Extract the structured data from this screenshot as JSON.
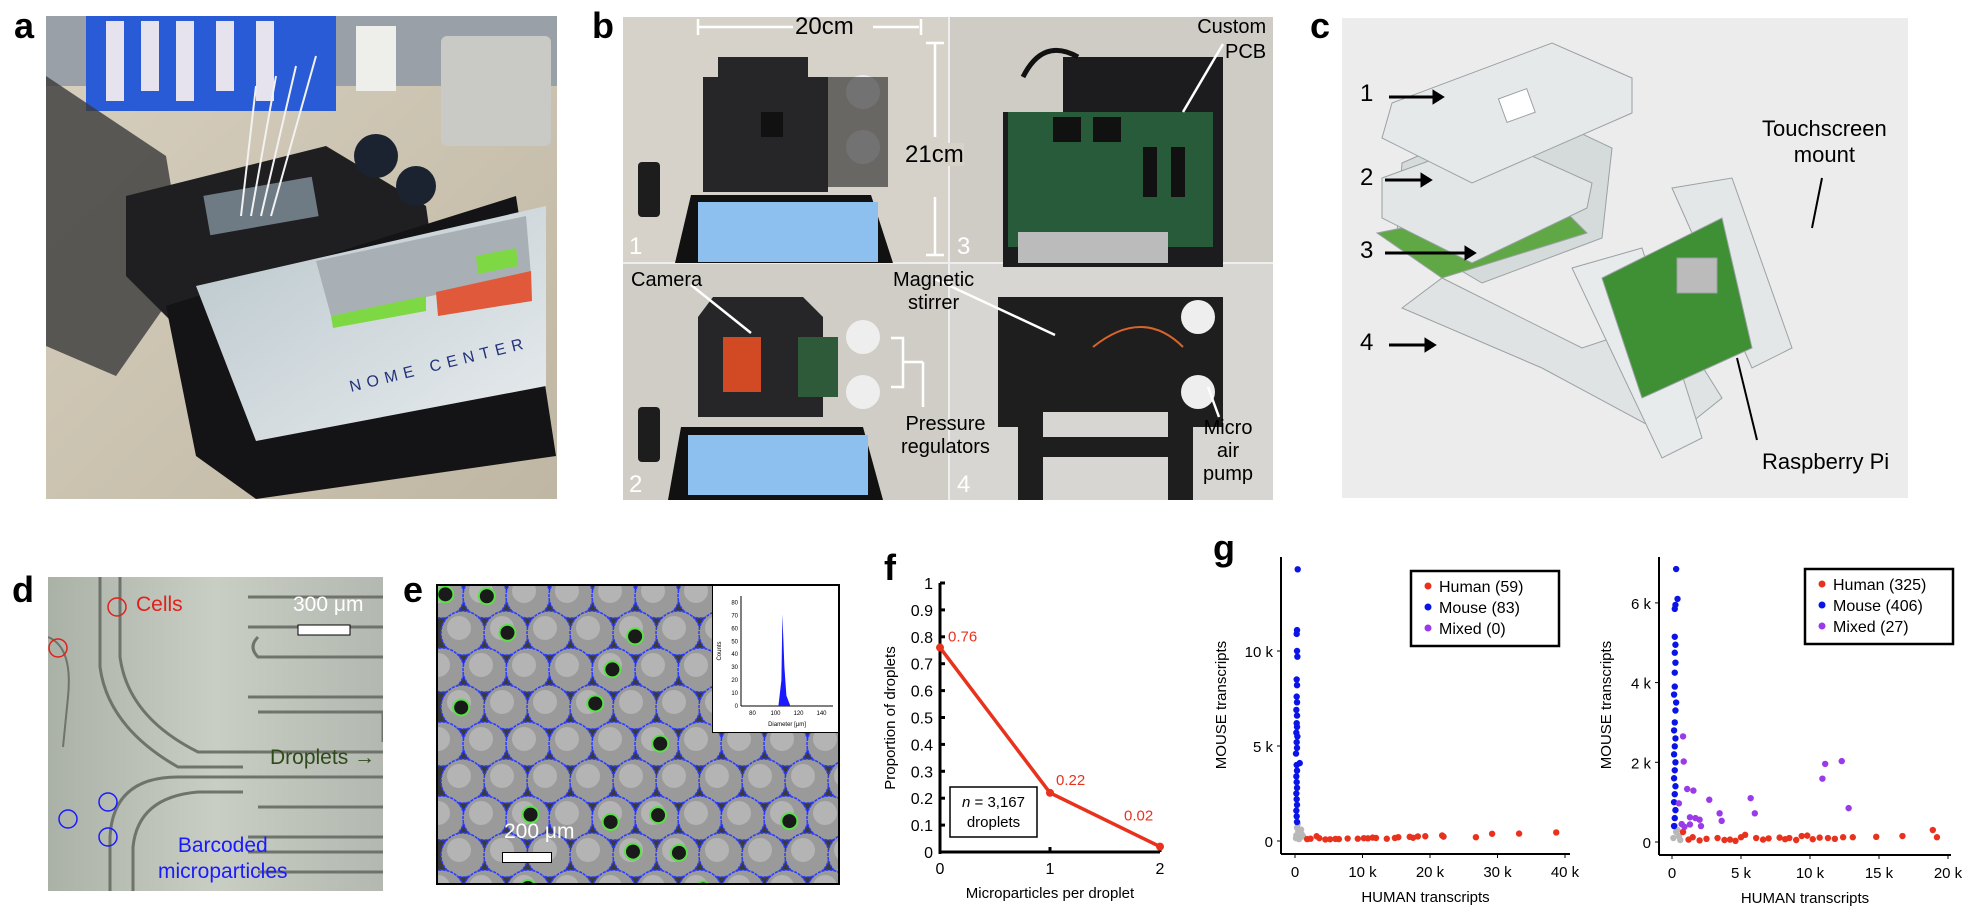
{
  "panels": {
    "a": {
      "label": "a",
      "screen_brand": "NOME CENTER"
    },
    "b": {
      "label": "b",
      "width_dim": "20cm",
      "height_dim": "21cm",
      "custom_pcb": [
        "Custom",
        "PCB"
      ],
      "camera": "Camera",
      "magnetic_stirrer": [
        "Magnetic",
        "stirrer"
      ],
      "pressure_regulators": [
        "Pressure",
        "regulators"
      ],
      "micro_air_pump": [
        "Micro",
        "air",
        "pump"
      ],
      "quadrants": [
        "1",
        "2",
        "3",
        "4"
      ]
    },
    "c": {
      "label": "c",
      "layers": [
        "1",
        "2",
        "3",
        "4"
      ],
      "touchscreen_mount": [
        "Touchscreen",
        "mount"
      ],
      "raspberry_pi": "Raspberry Pi"
    },
    "d": {
      "label": "d",
      "cells": "Cells",
      "scale": "300 μm",
      "droplets": "Droplets →",
      "barcoded": [
        "Barcoded",
        "microparticles"
      ],
      "colors": {
        "cells": "#e0201a",
        "particles": "#1a1aff",
        "droplets": "#2f4a1a"
      }
    },
    "e": {
      "label": "e",
      "scale": "200 μm",
      "inset": {
        "xlabel": "Diameter [μm]",
        "ylabel": "Counts",
        "xticks": [
          "80",
          "100",
          "120",
          "140"
        ],
        "yticks": [
          "0",
          "10",
          "20",
          "30",
          "40",
          "50",
          "60",
          "70",
          "80"
        ],
        "xlim": [
          70,
          150
        ],
        "ylim": [
          0,
          85
        ],
        "peak_x": 106,
        "peak_y": 71
      }
    },
    "f": {
      "label": "f"
    },
    "g": {
      "label": "g"
    }
  },
  "chart_data": [
    {
      "id": "f",
      "type": "line",
      "x": [
        0,
        1,
        2
      ],
      "values": [
        0.76,
        0.22,
        0.02
      ],
      "data_labels": [
        "0.76",
        "0.22",
        "0.02"
      ],
      "xlabel": "Microparticles per droplet",
      "ylabel": "Proportion of droplets",
      "xticks": [
        "0",
        "1",
        "2"
      ],
      "yticks": [
        "0",
        "0.1",
        "0.2",
        "0.3",
        "0.4",
        "0.5",
        "0.6",
        "0.7",
        "0.8",
        "0.9",
        "1"
      ],
      "xlim": [
        0,
        2
      ],
      "ylim": [
        0,
        1
      ],
      "annotation": {
        "n": "n",
        "rest": " = 3,167",
        "line2": "droplets"
      },
      "color": "#e8321e"
    },
    {
      "id": "g-left",
      "type": "scatter",
      "xlabel": "HUMAN transcripts",
      "ylabel": "MOUSE transcripts",
      "xticks": [
        "0",
        "10 k",
        "20 k",
        "30 k",
        "40 k"
      ],
      "xtick_values": [
        0,
        10000,
        20000,
        30000,
        40000
      ],
      "yticks": [
        "0",
        "5 k",
        "10 k"
      ],
      "ytick_values": [
        0,
        5000,
        10000
      ],
      "legend": "top-right",
      "series": [
        {
          "name": "Human (59)",
          "color": "#e8321e",
          "points": [
            [
              1800,
              100
            ],
            [
              2300,
              120
            ],
            [
              3200,
              250
            ],
            [
              3600,
              150
            ],
            [
              4500,
              80
            ],
            [
              5200,
              90
            ],
            [
              6000,
              110
            ],
            [
              6500,
              100
            ],
            [
              7800,
              130
            ],
            [
              9300,
              120
            ],
            [
              10200,
              150
            ],
            [
              10800,
              140
            ],
            [
              11500,
              180
            ],
            [
              12000,
              160
            ],
            [
              13600,
              120
            ],
            [
              14800,
              160
            ],
            [
              15300,
              200
            ],
            [
              17000,
              220
            ],
            [
              17500,
              170
            ],
            [
              18200,
              240
            ],
            [
              19300,
              250
            ],
            [
              21800,
              290
            ],
            [
              22000,
              230
            ],
            [
              26800,
              200
            ],
            [
              29200,
              380
            ],
            [
              33200,
              390
            ],
            [
              38700,
              450
            ]
          ]
        },
        {
          "name": "Mouse (83)",
          "color": "#0a14e6",
          "points": [
            [
              400,
              14300
            ],
            [
              300,
              11100
            ],
            [
              250,
              10900
            ],
            [
              300,
              10000
            ],
            [
              350,
              9700
            ],
            [
              250,
              8500
            ],
            [
              300,
              8200
            ],
            [
              250,
              7600
            ],
            [
              300,
              7300
            ],
            [
              200,
              6900
            ],
            [
              300,
              6600
            ],
            [
              250,
              6200
            ],
            [
              300,
              6000
            ],
            [
              200,
              5700
            ],
            [
              350,
              5500
            ],
            [
              250,
              5200
            ],
            [
              300,
              4900
            ],
            [
              150,
              4600
            ],
            [
              700,
              4100
            ],
            [
              250,
              4000
            ],
            [
              300,
              3700
            ],
            [
              200,
              3400
            ],
            [
              250,
              3100
            ],
            [
              300,
              2800
            ],
            [
              200,
              2500
            ],
            [
              250,
              2200
            ],
            [
              300,
              1900
            ],
            [
              200,
              1600
            ],
            [
              250,
              1300
            ],
            [
              300,
              1000
            ]
          ]
        },
        {
          "name": "Mixed (0)",
          "color": "#9a3ae8",
          "points": []
        },
        {
          "color": "#b8b8b8",
          "points": [
            [
              200,
              300
            ],
            [
              500,
              500
            ],
            [
              800,
              200
            ],
            [
              300,
              700
            ],
            [
              600,
              100
            ],
            [
              1000,
              350
            ],
            [
              400,
              900
            ],
            [
              900,
              600
            ],
            [
              150,
              150
            ],
            [
              1200,
              250
            ]
          ]
        }
      ]
    },
    {
      "id": "g-right",
      "type": "scatter",
      "xlabel": "HUMAN transcripts",
      "ylabel": "MOUSE transcripts",
      "xticks": [
        "0",
        "5 k",
        "10 k",
        "15 k",
        "20 k"
      ],
      "xtick_values": [
        0,
        5000,
        10000,
        15000,
        20000
      ],
      "yticks": [
        "0",
        "2 k",
        "4 k",
        "6 k"
      ],
      "ytick_values": [
        0,
        2000,
        4000,
        6000
      ],
      "legend": "top-right",
      "series": [
        {
          "name": "Human (325)",
          "color": "#e8321e",
          "points": [
            [
              800,
              250
            ],
            [
              1500,
              120
            ],
            [
              2500,
              80
            ],
            [
              3300,
              100
            ],
            [
              4200,
              60
            ],
            [
              5000,
              120
            ],
            [
              5300,
              180
            ],
            [
              6100,
              100
            ],
            [
              7000,
              90
            ],
            [
              7800,
              110
            ],
            [
              8500,
              100
            ],
            [
              9400,
              150
            ],
            [
              9800,
              160
            ],
            [
              10700,
              110
            ],
            [
              11300,
              100
            ],
            [
              12400,
              120
            ],
            [
              13100,
              120
            ],
            [
              14800,
              130
            ],
            [
              16700,
              150
            ],
            [
              18900,
              300
            ],
            [
              19200,
              120
            ],
            [
              1200,
              60
            ],
            [
              2000,
              40
            ],
            [
              3800,
              50
            ],
            [
              4600,
              30
            ],
            [
              6600,
              60
            ],
            [
              8200,
              70
            ],
            [
              9000,
              50
            ],
            [
              10200,
              70
            ],
            [
              11800,
              80
            ]
          ]
        },
        {
          "name": "Mouse (406)",
          "color": "#0a14e6",
          "points": [
            [
              300,
              6850
            ],
            [
              400,
              6100
            ],
            [
              250,
              5950
            ],
            [
              200,
              5850
            ],
            [
              200,
              5150
            ],
            [
              250,
              4950
            ],
            [
              200,
              4750
            ],
            [
              250,
              4500
            ],
            [
              200,
              4250
            ],
            [
              200,
              3900
            ],
            [
              150,
              3700
            ],
            [
              300,
              3500
            ],
            [
              250,
              3300
            ],
            [
              200,
              3000
            ],
            [
              150,
              2800
            ],
            [
              250,
              2600
            ],
            [
              200,
              2400
            ],
            [
              150,
              2200
            ],
            [
              250,
              2000
            ],
            [
              200,
              1800
            ],
            [
              150,
              1600
            ],
            [
              250,
              1400
            ],
            [
              200,
              1200
            ],
            [
              150,
              1000
            ],
            [
              250,
              800
            ],
            [
              200,
              600
            ],
            [
              150,
              400
            ]
          ]
        },
        {
          "name": "Mixed (27)",
          "color": "#9a3ae8",
          "points": [
            [
              800,
              2650
            ],
            [
              850,
              2020
            ],
            [
              1100,
              1330
            ],
            [
              1550,
              1290
            ],
            [
              2700,
              1060
            ],
            [
              3450,
              720
            ],
            [
              3600,
              530
            ],
            [
              5700,
              1100
            ],
            [
              6000,
              720
            ],
            [
              10900,
              1590
            ],
            [
              11100,
              1960
            ],
            [
              12300,
              2030
            ],
            [
              12800,
              850
            ],
            [
              1300,
              620
            ],
            [
              2000,
              560
            ],
            [
              2100,
              400
            ],
            [
              1300,
              440
            ],
            [
              700,
              450
            ],
            [
              500,
              970
            ],
            [
              1700,
              600
            ],
            [
              900,
              380
            ]
          ]
        },
        {
          "color": "#b8b8b8",
          "points": [
            [
              100,
              100
            ],
            [
              300,
              250
            ],
            [
              500,
              150
            ],
            [
              200,
              400
            ],
            [
              600,
              50
            ],
            [
              400,
              300
            ]
          ]
        }
      ]
    }
  ]
}
